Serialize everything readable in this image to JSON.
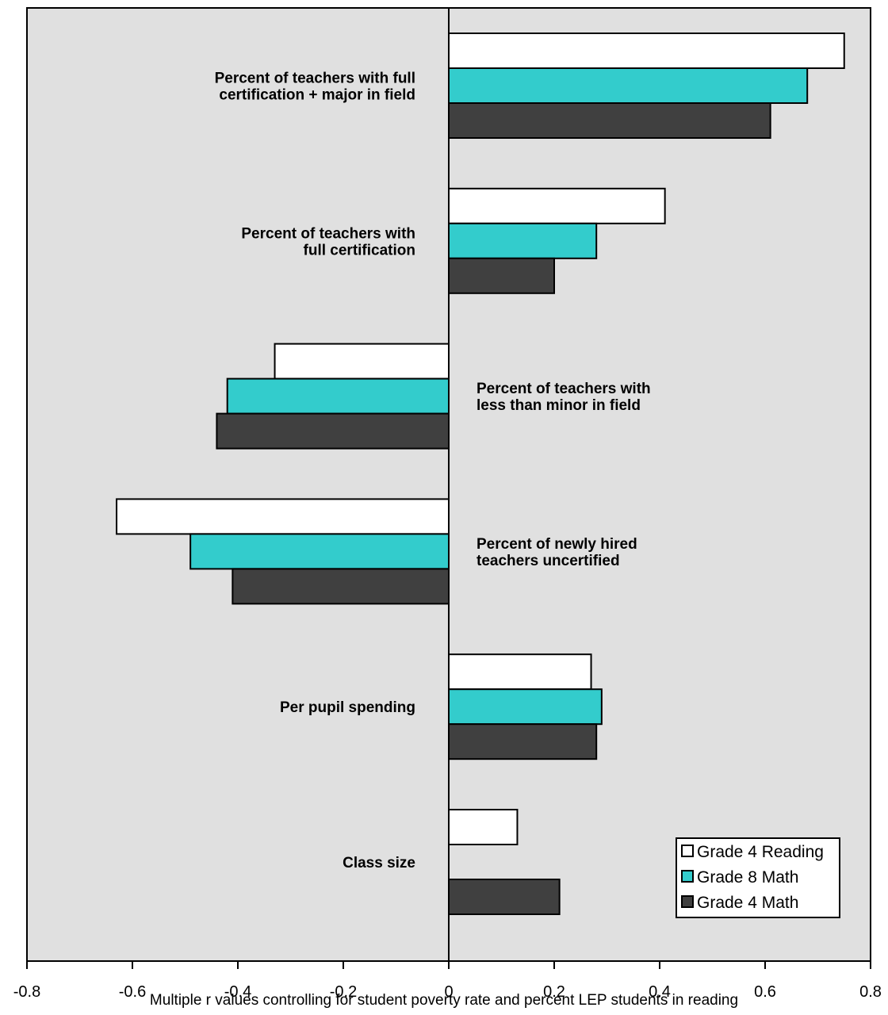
{
  "chart_data": {
    "type": "bar",
    "orientation": "horizontal",
    "categories": [
      [
        "Percent of teachers with full",
        "certification + major in field"
      ],
      [
        "Percent of teachers with",
        "full certification"
      ],
      [
        "Percent of teachers with",
        "less than minor in field"
      ],
      [
        "Percent of newly hired",
        "teachers uncertified"
      ],
      [
        "Per pupil spending"
      ],
      [
        "Class size"
      ]
    ],
    "series": [
      {
        "name": "Grade 4 Reading",
        "color": "#ffffff",
        "values": [
          0.75,
          0.41,
          -0.33,
          -0.63,
          0.27,
          0.13
        ]
      },
      {
        "name": "Grade 8 Math",
        "color": "#33cccc",
        "values": [
          0.68,
          0.28,
          -0.42,
          -0.49,
          0.29,
          null
        ]
      },
      {
        "name": "Grade 4 Math",
        "color": "#404040",
        "values": [
          0.61,
          0.2,
          -0.44,
          -0.41,
          0.28,
          0.21
        ]
      }
    ],
    "xlim": [
      -0.8,
      0.8
    ],
    "xticks": [
      "-0.8",
      "-0.6",
      "-0.4",
      "-0.2",
      "0",
      "0.2",
      "0.4",
      "0.6",
      "0.8"
    ],
    "xlabel": "Multiple r values controlling for student poverty rate and percent LEP students in reading",
    "legend_position": "bottom-right",
    "plot_background": "#e0e0e0",
    "grid": false
  }
}
